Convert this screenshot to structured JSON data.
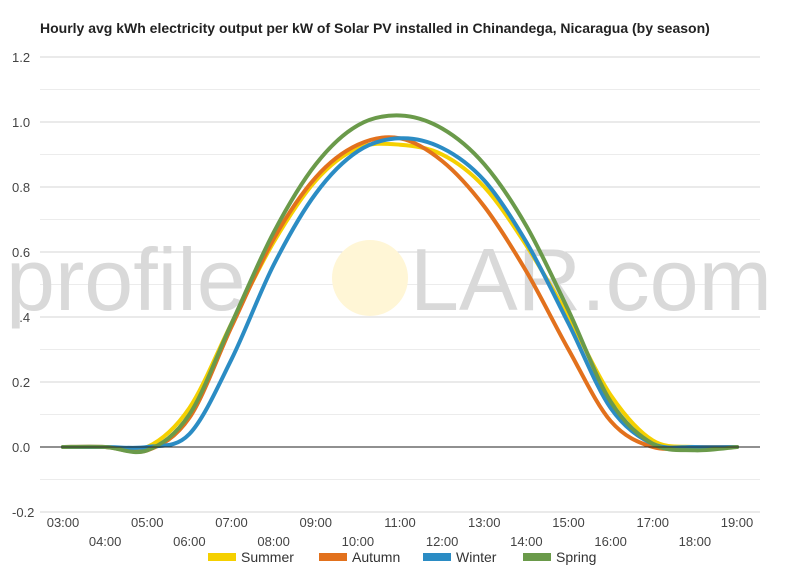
{
  "chart_data": {
    "type": "line",
    "title": "Hourly avg kWh electricity output per kW of Solar PV installed in Chinandega, Nicaragua (by season)",
    "xlabel": "",
    "ylabel": "",
    "x": [
      "03:00",
      "04:00",
      "05:00",
      "06:00",
      "07:00",
      "08:00",
      "09:00",
      "10:00",
      "11:00",
      "12:00",
      "13:00",
      "14:00",
      "15:00",
      "16:00",
      "17:00",
      "18:00",
      "19:00"
    ],
    "ylim": [
      -0.2,
      1.2
    ],
    "yticks": [
      "1.2",
      "1.0",
      "0.8",
      "0.6",
      "0.4",
      "0.2",
      "0.0",
      "-0.2"
    ],
    "grid": true,
    "legend_position": "bottom",
    "series": [
      {
        "name": "Summer",
        "color": "#f5d000",
        "values": [
          0,
          0,
          0,
          0.12,
          0.38,
          0.63,
          0.82,
          0.92,
          0.93,
          0.9,
          0.8,
          0.62,
          0.4,
          0.16,
          0.02,
          0,
          0
        ]
      },
      {
        "name": "Autumn",
        "color": "#e2711d",
        "values": [
          0,
          0,
          -0.01,
          0.09,
          0.37,
          0.64,
          0.83,
          0.93,
          0.95,
          0.88,
          0.74,
          0.54,
          0.3,
          0.08,
          0,
          0,
          0
        ]
      },
      {
        "name": "Winter",
        "color": "#2b8cc4",
        "values": [
          0,
          0,
          0,
          0.04,
          0.27,
          0.56,
          0.78,
          0.91,
          0.95,
          0.92,
          0.82,
          0.63,
          0.38,
          0.12,
          0.01,
          0,
          0
        ]
      },
      {
        "name": "Spring",
        "color": "#6a9a4a",
        "values": [
          0,
          0,
          -0.01,
          0.1,
          0.38,
          0.66,
          0.87,
          0.99,
          1.02,
          0.98,
          0.87,
          0.68,
          0.42,
          0.14,
          0.01,
          -0.01,
          0
        ]
      }
    ]
  },
  "watermark": {
    "left": "profile",
    "right": "LAR.com"
  }
}
